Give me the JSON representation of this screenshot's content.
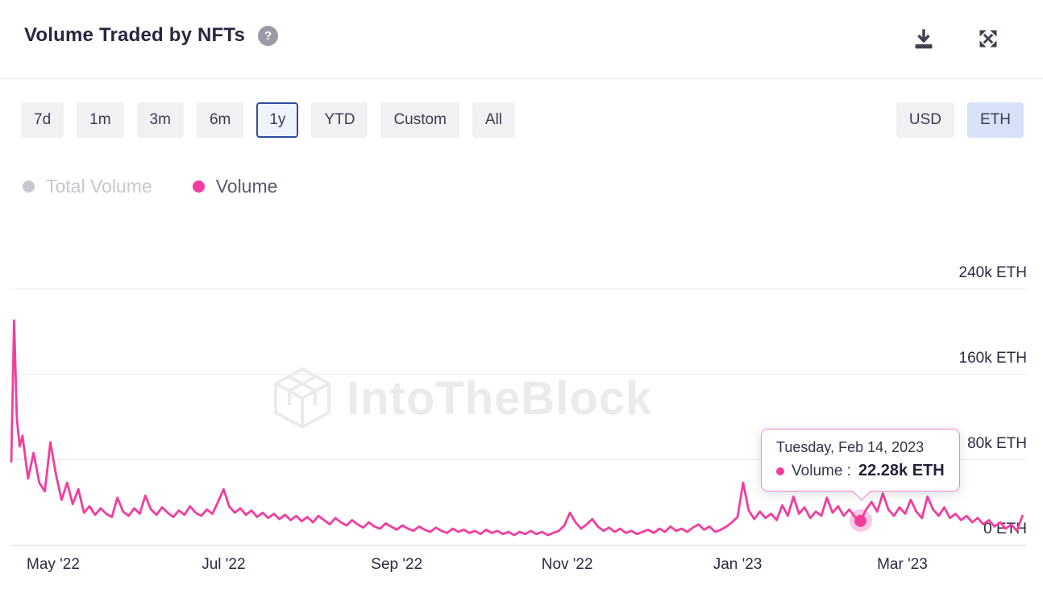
{
  "header": {
    "title": "Volume Traded by NFTs",
    "help_glyph": "?",
    "icons": {
      "download": "download-icon",
      "expand": "expand-icon"
    }
  },
  "toolbar": {
    "ranges": [
      "7d",
      "1m",
      "3m",
      "6m",
      "1y",
      "YTD",
      "Custom",
      "All"
    ],
    "selected_range": "1y",
    "currencies": [
      "USD",
      "ETH"
    ],
    "selected_currency": "ETH"
  },
  "legend": [
    {
      "label": "Total Volume",
      "color": "#c7c7cf",
      "active": false
    },
    {
      "label": "Volume",
      "color": "#f23d9e",
      "active": true
    }
  ],
  "watermark": {
    "text": "IntoTheBlock"
  },
  "tooltip": {
    "date": "Tuesday, Feb 14, 2023",
    "series_label": "Volume :",
    "value": "22.28k ETH"
  },
  "colors": {
    "accent_pink": "#f23d9e",
    "selected_border_blue": "#2e4d9e",
    "selected_fill_blue": "#d8e2f7",
    "ink": "#26263f"
  },
  "chart_data": {
    "type": "line",
    "title": "Volume Traded by NFTs",
    "value_unit": "k ETH",
    "ylim": [
      0,
      240
    ],
    "grid": "horizontal",
    "legend_position": "top-left",
    "x_range": [
      "2022-04-16",
      "2023-04-14"
    ],
    "yticks": [
      {
        "value": 240,
        "label": "240k ETH"
      },
      {
        "value": 160,
        "label": "160k ETH"
      },
      {
        "value": 80,
        "label": "80k ETH"
      },
      {
        "value": 0,
        "label": "0 ETH"
      }
    ],
    "xticks": [
      {
        "date": "2022-05-01",
        "label": "May '22"
      },
      {
        "date": "2022-07-01",
        "label": "Jul '22"
      },
      {
        "date": "2022-09-01",
        "label": "Sep '22"
      },
      {
        "date": "2022-11-01",
        "label": "Nov '22"
      },
      {
        "date": "2023-01-01",
        "label": "Jan '23"
      },
      {
        "date": "2023-03-01",
        "label": "Mar '23"
      }
    ],
    "highlight": {
      "date": "2023-02-14",
      "value": 22.28,
      "label": "22.28k ETH"
    },
    "series": [
      {
        "name": "Volume",
        "color": "#f23d9e",
        "points": [
          [
            "2022-04-16",
            78
          ],
          [
            "2022-04-17",
            210
          ],
          [
            "2022-04-18",
            118
          ],
          [
            "2022-04-19",
            92
          ],
          [
            "2022-04-20",
            102
          ],
          [
            "2022-04-22",
            62
          ],
          [
            "2022-04-24",
            86
          ],
          [
            "2022-04-26",
            58
          ],
          [
            "2022-04-28",
            50
          ],
          [
            "2022-04-30",
            96
          ],
          [
            "2022-05-02",
            66
          ],
          [
            "2022-05-04",
            42
          ],
          [
            "2022-05-06",
            58
          ],
          [
            "2022-05-08",
            38
          ],
          [
            "2022-05-10",
            52
          ],
          [
            "2022-05-12",
            30
          ],
          [
            "2022-05-14",
            36
          ],
          [
            "2022-05-16",
            28
          ],
          [
            "2022-05-18",
            34
          ],
          [
            "2022-05-20",
            29
          ],
          [
            "2022-05-22",
            26
          ],
          [
            "2022-05-24",
            44
          ],
          [
            "2022-05-26",
            31
          ],
          [
            "2022-05-28",
            27
          ],
          [
            "2022-05-30",
            34
          ],
          [
            "2022-06-01",
            29
          ],
          [
            "2022-06-03",
            46
          ],
          [
            "2022-06-05",
            33
          ],
          [
            "2022-06-07",
            28
          ],
          [
            "2022-06-09",
            35
          ],
          [
            "2022-06-11",
            30
          ],
          [
            "2022-06-13",
            26
          ],
          [
            "2022-06-15",
            32
          ],
          [
            "2022-06-17",
            28
          ],
          [
            "2022-06-19",
            36
          ],
          [
            "2022-06-21",
            30
          ],
          [
            "2022-06-23",
            27
          ],
          [
            "2022-06-25",
            33
          ],
          [
            "2022-06-27",
            29
          ],
          [
            "2022-06-29",
            40
          ],
          [
            "2022-07-01",
            52
          ],
          [
            "2022-07-03",
            36
          ],
          [
            "2022-07-05",
            30
          ],
          [
            "2022-07-07",
            34
          ],
          [
            "2022-07-09",
            28
          ],
          [
            "2022-07-11",
            32
          ],
          [
            "2022-07-13",
            26
          ],
          [
            "2022-07-15",
            30
          ],
          [
            "2022-07-17",
            25
          ],
          [
            "2022-07-19",
            29
          ],
          [
            "2022-07-21",
            24
          ],
          [
            "2022-07-23",
            28
          ],
          [
            "2022-07-25",
            23
          ],
          [
            "2022-07-27",
            27
          ],
          [
            "2022-07-29",
            22
          ],
          [
            "2022-07-31",
            26
          ],
          [
            "2022-08-02",
            21
          ],
          [
            "2022-08-04",
            27
          ],
          [
            "2022-08-06",
            23
          ],
          [
            "2022-08-08",
            19
          ],
          [
            "2022-08-10",
            25
          ],
          [
            "2022-08-12",
            21
          ],
          [
            "2022-08-14",
            18
          ],
          [
            "2022-08-16",
            23
          ],
          [
            "2022-08-18",
            19
          ],
          [
            "2022-08-20",
            16
          ],
          [
            "2022-08-22",
            21
          ],
          [
            "2022-08-24",
            17
          ],
          [
            "2022-08-26",
            15
          ],
          [
            "2022-08-28",
            20
          ],
          [
            "2022-08-30",
            17
          ],
          [
            "2022-09-01",
            14
          ],
          [
            "2022-09-03",
            18
          ],
          [
            "2022-09-05",
            15
          ],
          [
            "2022-09-07",
            13
          ],
          [
            "2022-09-09",
            17
          ],
          [
            "2022-09-11",
            14
          ],
          [
            "2022-09-13",
            12
          ],
          [
            "2022-09-15",
            16
          ],
          [
            "2022-09-17",
            13
          ],
          [
            "2022-09-19",
            11
          ],
          [
            "2022-09-21",
            15
          ],
          [
            "2022-09-23",
            12
          ],
          [
            "2022-09-25",
            14
          ],
          [
            "2022-09-27",
            11
          ],
          [
            "2022-09-29",
            13
          ],
          [
            "2022-10-01",
            10
          ],
          [
            "2022-10-03",
            14
          ],
          [
            "2022-10-05",
            11
          ],
          [
            "2022-10-07",
            13
          ],
          [
            "2022-10-09",
            10
          ],
          [
            "2022-10-11",
            12
          ],
          [
            "2022-10-13",
            9
          ],
          [
            "2022-10-15",
            12
          ],
          [
            "2022-10-17",
            10
          ],
          [
            "2022-10-19",
            13
          ],
          [
            "2022-10-21",
            10
          ],
          [
            "2022-10-23",
            12
          ],
          [
            "2022-10-25",
            9
          ],
          [
            "2022-10-27",
            11
          ],
          [
            "2022-10-29",
            13
          ],
          [
            "2022-10-31",
            18
          ],
          [
            "2022-11-02",
            30
          ],
          [
            "2022-11-04",
            21
          ],
          [
            "2022-11-06",
            15
          ],
          [
            "2022-11-08",
            19
          ],
          [
            "2022-11-10",
            24
          ],
          [
            "2022-11-12",
            17
          ],
          [
            "2022-11-14",
            13
          ],
          [
            "2022-11-16",
            16
          ],
          [
            "2022-11-18",
            12
          ],
          [
            "2022-11-20",
            15
          ],
          [
            "2022-11-22",
            11
          ],
          [
            "2022-11-24",
            13
          ],
          [
            "2022-11-26",
            10
          ],
          [
            "2022-11-28",
            12
          ],
          [
            "2022-11-30",
            14
          ],
          [
            "2022-12-02",
            11
          ],
          [
            "2022-12-04",
            15
          ],
          [
            "2022-12-06",
            12
          ],
          [
            "2022-12-08",
            17
          ],
          [
            "2022-12-10",
            13
          ],
          [
            "2022-12-12",
            15
          ],
          [
            "2022-12-14",
            12
          ],
          [
            "2022-12-16",
            16
          ],
          [
            "2022-12-18",
            19
          ],
          [
            "2022-12-20",
            14
          ],
          [
            "2022-12-22",
            17
          ],
          [
            "2022-12-24",
            12
          ],
          [
            "2022-12-26",
            14
          ],
          [
            "2022-12-28",
            17
          ],
          [
            "2022-12-30",
            21
          ],
          [
            "2023-01-01",
            26
          ],
          [
            "2023-01-03",
            58
          ],
          [
            "2023-01-05",
            32
          ],
          [
            "2023-01-07",
            24
          ],
          [
            "2023-01-09",
            31
          ],
          [
            "2023-01-11",
            25
          ],
          [
            "2023-01-13",
            29
          ],
          [
            "2023-01-15",
            23
          ],
          [
            "2023-01-17",
            37
          ],
          [
            "2023-01-19",
            27
          ],
          [
            "2023-01-21",
            45
          ],
          [
            "2023-01-23",
            29
          ],
          [
            "2023-01-25",
            35
          ],
          [
            "2023-01-27",
            25
          ],
          [
            "2023-01-29",
            31
          ],
          [
            "2023-01-31",
            27
          ],
          [
            "2023-02-02",
            44
          ],
          [
            "2023-02-04",
            30
          ],
          [
            "2023-02-06",
            36
          ],
          [
            "2023-02-08",
            27
          ],
          [
            "2023-02-10",
            33
          ],
          [
            "2023-02-12",
            26
          ],
          [
            "2023-02-14",
            22.28
          ],
          [
            "2023-02-16",
            33
          ],
          [
            "2023-02-18",
            40
          ],
          [
            "2023-02-20",
            31
          ],
          [
            "2023-02-22",
            48
          ],
          [
            "2023-02-24",
            33
          ],
          [
            "2023-02-26",
            27
          ],
          [
            "2023-02-28",
            35
          ],
          [
            "2023-03-02",
            29
          ],
          [
            "2023-03-04",
            42
          ],
          [
            "2023-03-06",
            31
          ],
          [
            "2023-03-08",
            25
          ],
          [
            "2023-03-10",
            45
          ],
          [
            "2023-03-12",
            33
          ],
          [
            "2023-03-14",
            27
          ],
          [
            "2023-03-16",
            35
          ],
          [
            "2023-03-18",
            25
          ],
          [
            "2023-03-20",
            29
          ],
          [
            "2023-03-22",
            23
          ],
          [
            "2023-03-24",
            27
          ],
          [
            "2023-03-26",
            21
          ],
          [
            "2023-03-28",
            25
          ],
          [
            "2023-03-30",
            19
          ],
          [
            "2023-04-01",
            23
          ],
          [
            "2023-04-03",
            17
          ],
          [
            "2023-04-05",
            21
          ],
          [
            "2023-04-07",
            15
          ],
          [
            "2023-04-09",
            19
          ],
          [
            "2023-04-11",
            13
          ],
          [
            "2023-04-13",
            27
          ]
        ]
      }
    ]
  }
}
